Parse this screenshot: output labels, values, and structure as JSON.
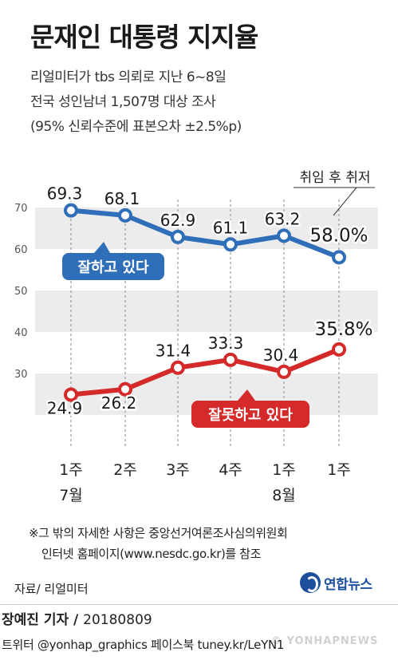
{
  "header": {
    "title": "문재인 대통령 지지율",
    "subtitle_lines": [
      "리얼미터가 tbs 의뢰로 지난 6~8일",
      "전국 성인남녀 1,507명 대상 조사",
      "(95% 신뢰수준에 표본오차 ±2.5%p)"
    ]
  },
  "chart_data": {
    "type": "line",
    "title": "문재인 대통령 지지율",
    "categories": [
      "1주\n7월",
      "2주",
      "3주",
      "4주",
      "1주\n8월",
      "1주"
    ],
    "categories_line1": [
      "1주",
      "2주",
      "3주",
      "4주",
      "1주",
      "1주"
    ],
    "categories_line2": [
      "7월",
      "",
      "",
      "",
      "8월",
      ""
    ],
    "y_ticks": [
      30,
      40,
      50,
      60,
      70
    ],
    "ylim": [
      20,
      72
    ],
    "series": [
      {
        "name": "잘하고 있다",
        "values": [
          69.3,
          68.1,
          62.9,
          61.1,
          63.2,
          58.0
        ],
        "labels": [
          "69.3",
          "68.1",
          "62.9",
          "61.1",
          "63.2",
          "58.0%"
        ],
        "color": "#2f6eb8"
      },
      {
        "name": "잘못하고 있다",
        "values": [
          24.9,
          26.2,
          31.4,
          33.3,
          30.4,
          35.8
        ],
        "labels": [
          "24.9",
          "26.2",
          "31.4",
          "33.3",
          "30.4",
          "35.8%"
        ],
        "color": "#d42a2a"
      }
    ],
    "annotation": "취임 후 취저",
    "grid": "alternating bands"
  },
  "notes": {
    "line1": "※그 밖의 자세한 사항은 중앙선거여론조사심의위원회",
    "line2": "인터넷 홈페이지(www.nesdc.go.kr)를 참조"
  },
  "source": "자료/ 리얼미터",
  "logo_text": "연합뉴스",
  "byline": {
    "name": "장예진 기자 /",
    "date": "20180809"
  },
  "social": "트위터 @yonhap_graphics  페이스북 tuney.kr/LeYN1",
  "watermark": "© YONHAPNEWS"
}
